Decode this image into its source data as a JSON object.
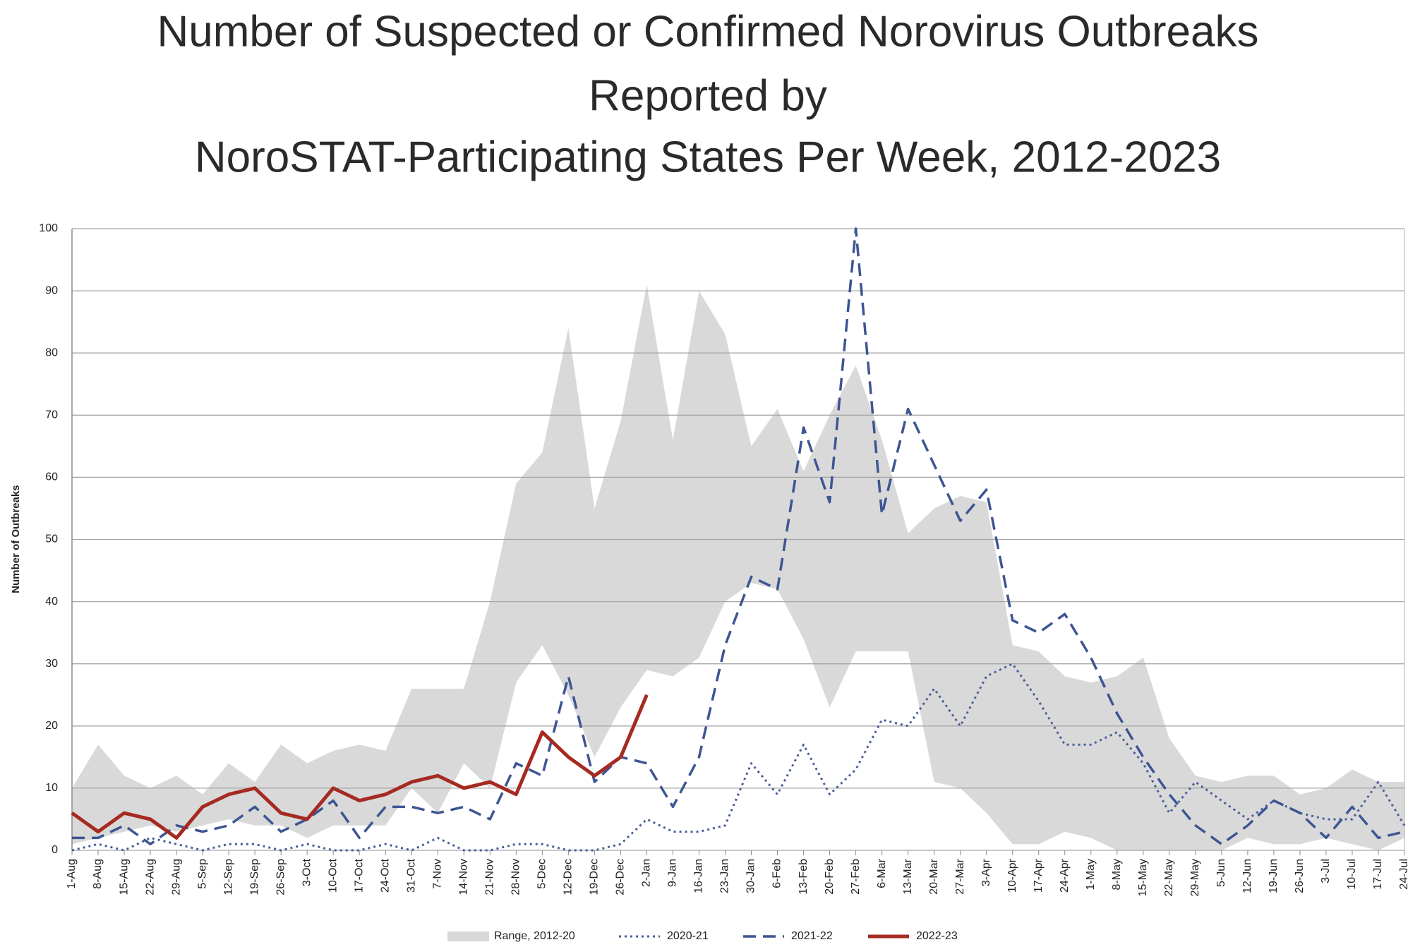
{
  "chart_data": {
    "type": "line",
    "title": [
      "Number of Suspected or Confirmed Norovirus Outbreaks",
      "Reported by",
      "NoroSTAT-Participating States Per Week, 2012-2023"
    ],
    "y_label": "Number of Outbreaks",
    "categories": [
      "1-Aug",
      "8-Aug",
      "15-Aug",
      "22-Aug",
      "29-Aug",
      "5-Sep",
      "12-Sep",
      "19-Sep",
      "26-Sep",
      "3-Oct",
      "10-Oct",
      "17-Oct",
      "24-Oct",
      "31-Oct",
      "7-Nov",
      "14-Nov",
      "21-Nov",
      "28-Nov",
      "5-Dec",
      "12-Dec",
      "19-Dec",
      "26-Dec",
      "2-Jan",
      "9-Jan",
      "16-Jan",
      "23-Jan",
      "30-Jan",
      "6-Feb",
      "13-Feb",
      "20-Feb",
      "27-Feb",
      "6-Mar",
      "13-Mar",
      "20-Mar",
      "27-Mar",
      "3-Apr",
      "10-Apr",
      "17-Apr",
      "24-Apr",
      "1-May",
      "8-May",
      "15-May",
      "22-May",
      "29-May",
      "5-Jun",
      "12-Jun",
      "19-Jun",
      "26-Jun",
      "3-Jul",
      "10-Jul",
      "17-Jul",
      "24-Jul"
    ],
    "range": {
      "name": "Range, 2012-20",
      "color": "#d9d9d9",
      "upper": [
        10,
        17,
        12,
        10,
        12,
        9,
        14,
        11,
        17,
        14,
        16,
        17,
        16,
        26,
        26,
        26,
        40,
        59,
        64,
        84,
        55,
        69,
        91,
        66,
        90,
        83,
        65,
        71,
        61,
        70,
        78,
        66,
        51,
        55,
        57,
        56,
        33,
        32,
        28,
        27,
        28,
        31,
        18,
        12,
        11,
        12,
        12,
        9,
        10,
        13,
        11,
        11
      ],
      "lower": [
        1,
        2,
        3,
        4,
        3,
        4,
        5,
        4,
        4,
        2,
        4,
        4,
        4,
        10,
        6,
        14,
        10,
        27,
        33,
        25,
        15,
        23,
        29,
        28,
        31,
        40,
        43,
        42,
        34,
        23,
        32,
        32,
        32,
        11,
        10,
        6,
        1,
        1,
        3,
        2,
        0,
        0,
        0,
        0,
        0,
        2,
        1,
        1,
        2,
        1,
        0,
        2
      ]
    },
    "series": [
      {
        "name": "2020-21",
        "color": "#4a5e9a",
        "dash": "dotted",
        "values": [
          0,
          1,
          0,
          2,
          1,
          0,
          1,
          1,
          0,
          1,
          0,
          0,
          1,
          0,
          2,
          0,
          0,
          1,
          1,
          0,
          0,
          1,
          5,
          3,
          3,
          4,
          14,
          9,
          17,
          9,
          13,
          21,
          20,
          26,
          20,
          28,
          30,
          24,
          17,
          17,
          19,
          14,
          6,
          11,
          8,
          5,
          8,
          6,
          5,
          5,
          11,
          4
        ]
      },
      {
        "name": "2021-22",
        "color": "#3d5593",
        "dash": "dashed",
        "values": [
          2,
          2,
          4,
          1,
          4,
          3,
          4,
          7,
          3,
          5,
          8,
          2,
          7,
          7,
          6,
          7,
          5,
          14,
          12,
          28,
          11,
          15,
          14,
          7,
          15,
          33,
          44,
          42,
          68,
          56,
          100,
          54,
          71,
          62,
          53,
          58,
          37,
          35,
          38,
          31,
          22,
          15,
          9,
          4,
          1,
          4,
          8,
          6,
          2,
          7,
          2,
          3
        ]
      },
      {
        "name": "2022-23",
        "color": "#a52a22",
        "dash": "solid",
        "values": [
          6,
          3,
          6,
          5,
          2,
          7,
          9,
          10,
          6,
          5,
          10,
          8,
          9,
          11,
          12,
          10,
          11,
          9,
          19,
          15,
          12,
          15,
          25,
          null,
          null,
          null,
          null,
          null,
          null,
          null,
          null,
          null,
          null,
          null,
          null,
          null,
          null,
          null,
          null,
          null,
          null,
          null,
          null,
          null,
          null,
          null,
          null,
          null,
          null,
          null,
          null,
          null
        ]
      }
    ],
    "ylim": [
      0,
      100
    ],
    "yticks": [
      0,
      10,
      20,
      30,
      40,
      50,
      60,
      70,
      80,
      90,
      100
    ],
    "grid": true
  }
}
